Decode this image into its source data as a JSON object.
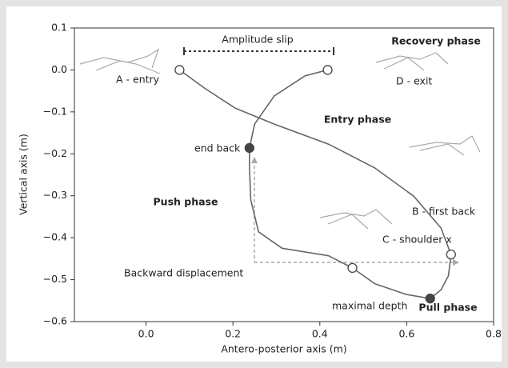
{
  "chart_data": {
    "type": "line",
    "xlabel": "Antero-posterior axis (m)",
    "ylabel": "Vertical axis (m)",
    "xlim": [
      -0.165,
      0.8
    ],
    "ylim": [
      -0.6,
      0.1
    ],
    "xticks": [
      {
        "value": 0,
        "label": "0.0"
      },
      0.2,
      0.4,
      0.6,
      0.8
    ],
    "yticks": [
      0.1,
      {
        "value": 0,
        "label": "0.0"
      },
      {
        "value": -0.1,
        "label": "−0.1"
      },
      {
        "value": -0.2,
        "label": "−0.2"
      },
      {
        "value": -0.3,
        "label": "−0.3"
      },
      {
        "value": -0.4,
        "label": "−0.4"
      },
      {
        "value": -0.5,
        "label": "−0.5"
      },
      {
        "value": -0.6,
        "label": "−0.6"
      }
    ],
    "color": "#666666",
    "x": [
      0.077,
      0.134,
      0.205,
      0.295,
      0.42,
      0.527,
      0.616,
      0.679,
      0.702,
      0.696,
      0.679,
      0.654,
      0.598,
      0.527,
      0.475,
      0.42,
      0.313,
      0.259,
      0.241,
      0.238,
      0.238,
      0.25,
      0.295,
      0.366,
      0.418
    ],
    "y": [
      0.0,
      -0.043,
      -0.091,
      -0.129,
      -0.177,
      -0.234,
      -0.301,
      -0.377,
      -0.44,
      -0.491,
      -0.524,
      -0.545,
      -0.535,
      -0.51,
      -0.472,
      -0.443,
      -0.425,
      -0.386,
      -0.31,
      -0.234,
      -0.186,
      -0.129,
      -0.062,
      -0.014,
      0.0
    ],
    "markers": [
      {
        "label": "A - entry",
        "x": 0.077,
        "y": 0.0,
        "filled": false
      },
      {
        "label": "D - exit",
        "x": 0.418,
        "y": 0.0,
        "filled": false
      },
      {
        "label": "end back",
        "x": 0.238,
        "y": -0.186,
        "filled": true
      },
      {
        "label": "B - first back",
        "x": 0.702,
        "y": -0.44,
        "filled": false
      },
      {
        "label": "C - shoulder x",
        "x": 0.475,
        "y": -0.472,
        "filled": false
      },
      {
        "label": "maximal depth",
        "x": 0.654,
        "y": -0.545,
        "filled": true
      }
    ],
    "annotations": [
      "Amplitude slip",
      "Recovery phase",
      "Entry phase",
      "Push phase",
      "Pull phase",
      "Backward displacement"
    ]
  }
}
